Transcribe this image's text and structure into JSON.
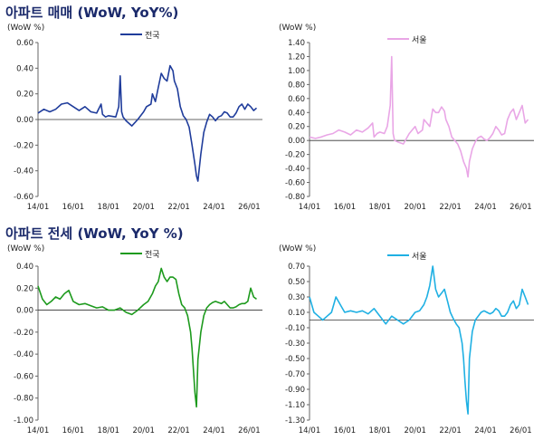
{
  "sections": [
    {
      "title": "아파트 매매 (WoW, YoY%)"
    },
    {
      "title": "아파트 전세 (WoW, YoY %)"
    }
  ],
  "chart_data": [
    {
      "type": "line",
      "unit_label": "(WoW %)",
      "series": [
        {
          "name": "전국",
          "color": "#1f3c9b",
          "x": [
            "2014-01",
            "2014-05",
            "2014-09",
            "2015-01",
            "2015-05",
            "2015-09",
            "2016-01",
            "2016-05",
            "2016-09",
            "2017-01",
            "2017-05",
            "2017-08",
            "2017-09",
            "2017-11",
            "2018-01",
            "2018-06",
            "2018-08",
            "2018-09",
            "2018-10",
            "2018-11",
            "2019-01",
            "2019-05",
            "2019-09",
            "2020-01",
            "2020-03",
            "2020-06",
            "2020-07",
            "2020-09",
            "2020-11",
            "2021-01",
            "2021-03",
            "2021-05",
            "2021-07",
            "2021-09",
            "2021-10",
            "2021-12",
            "2022-02",
            "2022-04",
            "2022-06",
            "2022-08",
            "2022-10",
            "2022-12",
            "2023-01",
            "2023-02",
            "2023-04",
            "2023-06",
            "2023-08",
            "2023-10",
            "2023-12",
            "2024-02",
            "2024-04",
            "2024-06",
            "2024-08",
            "2024-10",
            "2024-12",
            "2025-02",
            "2025-04",
            "2025-06",
            "2025-08",
            "2025-10",
            "2025-12",
            "2026-02",
            "2026-04",
            "2026-06"
          ],
          "values": [
            0.05,
            0.08,
            0.06,
            0.08,
            0.12,
            0.13,
            0.1,
            0.07,
            0.1,
            0.06,
            0.05,
            0.12,
            0.04,
            0.02,
            0.03,
            0.02,
            0.1,
            0.34,
            0.06,
            0.02,
            -0.01,
            -0.05,
            0.0,
            0.06,
            0.1,
            0.12,
            0.2,
            0.14,
            0.25,
            0.36,
            0.32,
            0.3,
            0.42,
            0.38,
            0.3,
            0.24,
            0.1,
            0.03,
            0.0,
            -0.06,
            -0.2,
            -0.35,
            -0.44,
            -0.48,
            -0.27,
            -0.1,
            -0.02,
            0.04,
            0.02,
            -0.01,
            0.02,
            0.03,
            0.06,
            0.05,
            0.02,
            0.02,
            0.05,
            0.1,
            0.12,
            0.08,
            0.12,
            0.1,
            0.07,
            0.09
          ]
        }
      ],
      "xticks": [
        "14/01",
        "16/01",
        "18/01",
        "20/01",
        "22/01",
        "24/01",
        "26/01"
      ],
      "ylim": [
        -0.6,
        0.6
      ],
      "yticks": [
        "-0.60",
        "-0.40",
        "-0.20",
        "0.00",
        "0.20",
        "0.40",
        "0.60"
      ]
    },
    {
      "type": "line",
      "unit_label": "(WoW %)",
      "series": [
        {
          "name": "서울",
          "color": "#e9a6e6",
          "x": [
            "2014-01",
            "2014-05",
            "2014-09",
            "2015-01",
            "2015-05",
            "2015-09",
            "2016-01",
            "2016-05",
            "2016-09",
            "2017-01",
            "2017-05",
            "2017-08",
            "2017-09",
            "2017-11",
            "2018-01",
            "2018-04",
            "2018-06",
            "2018-08",
            "2018-09",
            "2018-10",
            "2018-11",
            "2019-01",
            "2019-05",
            "2019-09",
            "2020-01",
            "2020-03",
            "2020-06",
            "2020-07",
            "2020-09",
            "2020-11",
            "2021-01",
            "2021-03",
            "2021-05",
            "2021-07",
            "2021-09",
            "2021-10",
            "2021-12",
            "2022-02",
            "2022-04",
            "2022-06",
            "2022-08",
            "2022-10",
            "2022-12",
            "2023-01",
            "2023-02",
            "2023-04",
            "2023-06",
            "2023-08",
            "2023-10",
            "2023-12",
            "2024-02",
            "2024-04",
            "2024-06",
            "2024-08",
            "2024-10",
            "2024-12",
            "2025-02",
            "2025-04",
            "2025-06",
            "2025-08",
            "2025-10",
            "2025-12",
            "2026-02",
            "2026-04",
            "2026-06"
          ],
          "values": [
            0.05,
            0.03,
            0.05,
            0.08,
            0.1,
            0.15,
            0.12,
            0.08,
            0.15,
            0.12,
            0.18,
            0.25,
            0.05,
            0.1,
            0.12,
            0.1,
            0.2,
            0.5,
            1.2,
            0.1,
            0.0,
            -0.02,
            -0.05,
            0.1,
            0.2,
            0.1,
            0.15,
            0.3,
            0.25,
            0.2,
            0.45,
            0.4,
            0.4,
            0.48,
            0.42,
            0.3,
            0.2,
            0.05,
            0.0,
            -0.05,
            -0.15,
            -0.3,
            -0.4,
            -0.52,
            -0.3,
            -0.12,
            -0.02,
            0.04,
            0.06,
            0.02,
            0.0,
            0.04,
            0.1,
            0.2,
            0.15,
            0.08,
            0.1,
            0.3,
            0.4,
            0.45,
            0.3,
            0.4,
            0.5,
            0.25,
            0.3
          ]
        }
      ],
      "xticks": [
        "14/01",
        "16/01",
        "18/01",
        "20/01",
        "22/01",
        "24/01",
        "26/01"
      ],
      "ylim": [
        -0.8,
        1.4
      ],
      "yticks": [
        "-0.80",
        "-0.60",
        "-0.40",
        "-0.20",
        "0.00",
        "0.20",
        "0.40",
        "0.60",
        "0.80",
        "1.00",
        "1.20",
        "1.40"
      ]
    },
    {
      "type": "line",
      "unit_label": "(WoW %)",
      "series": [
        {
          "name": "전국",
          "color": "#1d9a1d",
          "x": [
            "2014-01",
            "2014-04",
            "2014-07",
            "2014-10",
            "2015-01",
            "2015-04",
            "2015-07",
            "2015-10",
            "2016-01",
            "2016-05",
            "2016-09",
            "2017-01",
            "2017-05",
            "2017-09",
            "2018-01",
            "2018-05",
            "2018-09",
            "2019-01",
            "2019-05",
            "2019-09",
            "2020-01",
            "2020-04",
            "2020-07",
            "2020-09",
            "2020-11",
            "2021-01",
            "2021-03",
            "2021-05",
            "2021-07",
            "2021-09",
            "2021-11",
            "2022-01",
            "2022-03",
            "2022-05",
            "2022-07",
            "2022-09",
            "2022-10",
            "2022-11",
            "2022-12",
            "2023-01",
            "2023-02",
            "2023-04",
            "2023-06",
            "2023-08",
            "2023-10",
            "2023-12",
            "2024-02",
            "2024-04",
            "2024-06",
            "2024-08",
            "2024-10",
            "2024-12",
            "2025-02",
            "2025-04",
            "2025-06",
            "2025-08",
            "2025-10",
            "2025-12",
            "2026-02",
            "2026-04",
            "2026-06"
          ],
          "values": [
            0.22,
            0.1,
            0.05,
            0.08,
            0.12,
            0.1,
            0.15,
            0.18,
            0.08,
            0.05,
            0.06,
            0.04,
            0.02,
            0.03,
            0.0,
            0.0,
            0.02,
            -0.02,
            -0.04,
            0.0,
            0.05,
            0.08,
            0.15,
            0.22,
            0.26,
            0.38,
            0.3,
            0.26,
            0.3,
            0.3,
            0.28,
            0.15,
            0.05,
            0.02,
            -0.05,
            -0.2,
            -0.35,
            -0.55,
            -0.75,
            -0.88,
            -0.45,
            -0.2,
            -0.05,
            0.02,
            0.05,
            0.07,
            0.08,
            0.07,
            0.06,
            0.08,
            0.05,
            0.02,
            0.02,
            0.03,
            0.05,
            0.06,
            0.06,
            0.08,
            0.2,
            0.12,
            0.1
          ]
        }
      ],
      "xticks": [
        "14/01",
        "16/01",
        "18/01",
        "20/01",
        "22/01",
        "24/01",
        "26/01"
      ],
      "ylim": [
        -1.0,
        0.4
      ],
      "yticks": [
        "-1.00",
        "-0.80",
        "-0.60",
        "-0.40",
        "-0.20",
        "0.00",
        "0.20",
        "0.40"
      ]
    },
    {
      "type": "line",
      "unit_label": "(WoW %)",
      "series": [
        {
          "name": "서울",
          "color": "#1fb0e3",
          "x": [
            "2014-01",
            "2014-04",
            "2014-07",
            "2014-10",
            "2015-01",
            "2015-04",
            "2015-07",
            "2015-10",
            "2016-01",
            "2016-05",
            "2016-09",
            "2017-01",
            "2017-05",
            "2017-09",
            "2018-01",
            "2018-05",
            "2018-09",
            "2019-01",
            "2019-05",
            "2019-09",
            "2020-01",
            "2020-04",
            "2020-07",
            "2020-09",
            "2020-11",
            "2021-01",
            "2021-03",
            "2021-05",
            "2021-07",
            "2021-09",
            "2021-11",
            "2022-01",
            "2022-03",
            "2022-05",
            "2022-07",
            "2022-09",
            "2022-10",
            "2022-11",
            "2022-12",
            "2023-01",
            "2023-02",
            "2023-04",
            "2023-06",
            "2023-08",
            "2023-10",
            "2023-12",
            "2024-02",
            "2024-04",
            "2024-06",
            "2024-08",
            "2024-10",
            "2024-12",
            "2025-02",
            "2025-04",
            "2025-06",
            "2025-08",
            "2025-10",
            "2025-12",
            "2026-02",
            "2026-04",
            "2026-06"
          ],
          "values": [
            0.3,
            0.1,
            0.05,
            0.0,
            0.05,
            0.1,
            0.3,
            0.2,
            0.1,
            0.12,
            0.1,
            0.12,
            0.08,
            0.15,
            0.05,
            -0.05,
            0.05,
            0.0,
            -0.05,
            0.0,
            0.1,
            0.12,
            0.2,
            0.3,
            0.45,
            0.7,
            0.4,
            0.3,
            0.35,
            0.4,
            0.25,
            0.1,
            0.02,
            -0.05,
            -0.1,
            -0.3,
            -0.5,
            -0.8,
            -1.05,
            -1.22,
            -0.5,
            -0.15,
            0.0,
            0.05,
            0.1,
            0.12,
            0.1,
            0.08,
            0.1,
            0.15,
            0.12,
            0.05,
            0.05,
            0.1,
            0.2,
            0.25,
            0.15,
            0.2,
            0.4,
            0.3,
            0.2
          ]
        }
      ],
      "xticks": [
        "14/01",
        "16/01",
        "18/01",
        "20/01",
        "22/01",
        "24/01",
        "26/01"
      ],
      "ylim": [
        -1.3,
        0.7
      ],
      "yticks": [
        "-1.30",
        "-1.10",
        "-0.90",
        "-0.70",
        "-0.50",
        "-0.30",
        "-0.10",
        "0.10",
        "0.30",
        "0.50",
        "0.70"
      ]
    }
  ]
}
